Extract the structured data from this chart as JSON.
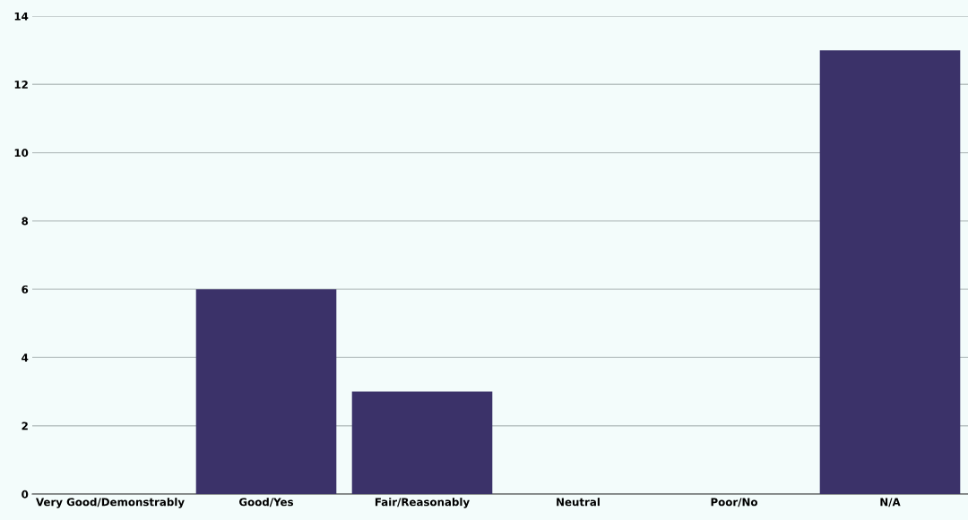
{
  "chart_data": {
    "type": "bar",
    "categories": [
      "Very Good/Demonstrably",
      "Good/Yes",
      "Fair/Reasonably",
      "Neutral",
      "Poor/No",
      "N/A"
    ],
    "values": [
      0,
      6,
      3,
      0,
      0,
      13
    ],
    "color": "#3b3269",
    "ylim": [
      0,
      14
    ],
    "yticks": [
      0,
      2,
      4,
      6,
      8,
      10,
      12,
      14
    ],
    "grid": "y",
    "legend": false
  }
}
